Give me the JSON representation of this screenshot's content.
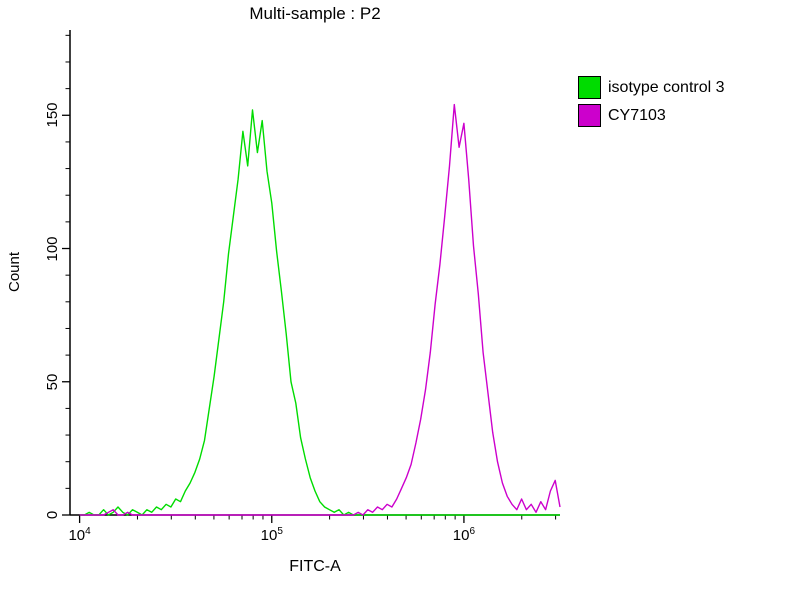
{
  "title": "Multi-sample : P2",
  "legend": {
    "items": [
      {
        "label": "isotype control 3",
        "color": "#00DC00"
      },
      {
        "label": "CY7103",
        "color": "#CC00CC"
      }
    ]
  },
  "chart_data": {
    "type": "line",
    "subtype": "flow-cytometry-histogram",
    "title": "Multi-sample : P2",
    "xlabel": "FITC-A",
    "ylabel": "Count",
    "x_scale": "log10",
    "xlim_log": [
      3.95,
      6.5
    ],
    "ylim": [
      0,
      182
    ],
    "grid": false,
    "legend_position": "top-right-outside",
    "x_ticks": [
      {
        "base": "10",
        "exp": "4",
        "log": 4
      },
      {
        "base": "10",
        "exp": "5",
        "log": 5
      },
      {
        "base": "10",
        "exp": "6",
        "log": 6
      }
    ],
    "y_ticks": [
      {
        "label": "0",
        "value": 0
      },
      {
        "label": "50",
        "value": 50
      },
      {
        "label": "100",
        "value": 100
      },
      {
        "label": "150",
        "value": 150
      }
    ],
    "x_start_log": 4.0,
    "x_step_log": 0.025,
    "series": [
      {
        "name": "isotype control 3",
        "color": "#00DC00",
        "peak_x": 80000,
        "peak_count": 152,
        "counts": [
          0,
          0,
          1,
          0,
          0,
          2,
          0,
          1,
          3,
          1,
          0,
          2,
          1,
          0,
          2,
          1,
          3,
          2,
          4,
          3,
          6,
          5,
          9,
          12,
          16,
          21,
          28,
          40,
          52,
          66,
          80,
          98,
          112,
          126,
          144,
          131,
          152,
          136,
          148,
          129,
          117,
          99,
          84,
          68,
          50,
          42,
          29,
          21,
          14,
          9,
          5,
          3,
          2,
          1,
          2,
          0,
          1,
          0,
          0,
          0,
          0,
          0,
          0,
          0,
          0,
          0,
          0,
          0,
          0,
          0,
          0,
          0,
          0,
          0,
          0,
          0,
          0,
          0,
          0,
          0,
          0,
          0,
          0,
          0,
          0,
          0,
          0,
          0,
          0,
          0,
          0,
          0,
          0,
          0,
          0,
          0,
          0,
          0,
          0,
          0,
          0
        ]
      },
      {
        "name": "CY7103",
        "color": "#CC00CC",
        "peak_x": 900000,
        "peak_count": 154,
        "counts": [
          0,
          0,
          0,
          0,
          0,
          0,
          1,
          2,
          0,
          0,
          1,
          0,
          0,
          0,
          0,
          0,
          0,
          0,
          0,
          0,
          0,
          0,
          0,
          0,
          0,
          0,
          0,
          0,
          0,
          0,
          0,
          0,
          0,
          0,
          0,
          0,
          0,
          0,
          0,
          0,
          0,
          0,
          0,
          0,
          0,
          0,
          0,
          0,
          0,
          0,
          0,
          0,
          0,
          0,
          0,
          0,
          0,
          0,
          1,
          0,
          2,
          1,
          3,
          2,
          4,
          3,
          6,
          10,
          14,
          19,
          27,
          36,
          47,
          61,
          79,
          94,
          112,
          131,
          154,
          138,
          147,
          126,
          101,
          83,
          61,
          46,
          31,
          20,
          12,
          7,
          4,
          2,
          6,
          2,
          4,
          1,
          5,
          2,
          9,
          13,
          3
        ]
      }
    ]
  }
}
